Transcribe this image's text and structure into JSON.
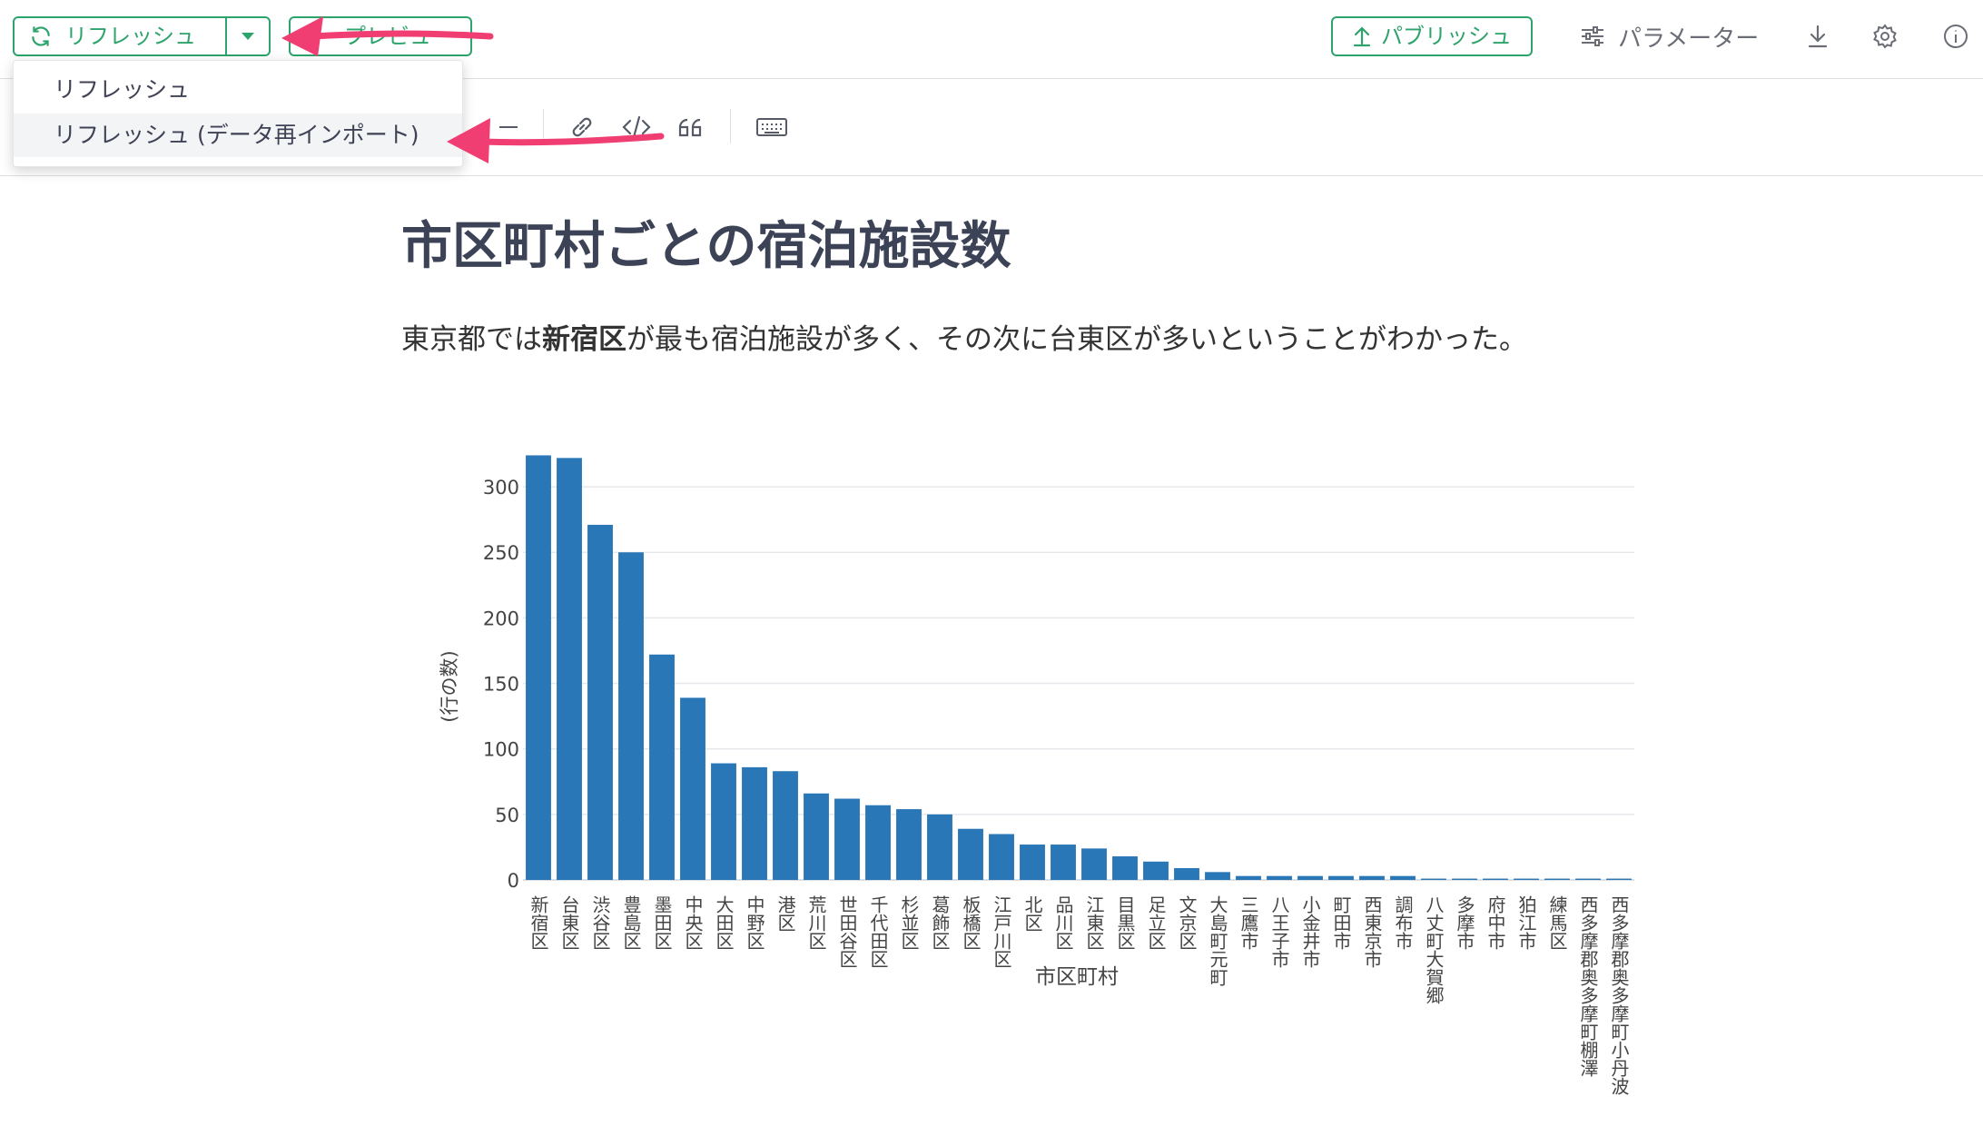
{
  "toolbar": {
    "refresh_label": "リフレッシュ",
    "preview_label": "プレビュー",
    "publish_label": "パブリッシュ",
    "parameters_label": "パラメーター",
    "icons": {
      "refresh": "refresh-icon",
      "caret": "caret-down-icon",
      "publish": "upload-icon",
      "parameters": "sliders-icon",
      "download": "download-icon",
      "settings": "gear-icon",
      "info": "info-icon"
    }
  },
  "editor_toolbar": {
    "icons": [
      "list-icon",
      "link-icon",
      "code-icon",
      "quote-icon",
      "keyboard-icon"
    ]
  },
  "dropdown": {
    "items": [
      "リフレッシュ",
      "リフレッシュ (データ再インポート)"
    ]
  },
  "document": {
    "title": "市区町村ごとの宿泊施設数",
    "text_before": "東京都では",
    "text_bold": "新宿区",
    "text_after": "が最も宿泊施設が多く、その次に台東区が多いということがわかった。"
  },
  "chart_data": {
    "type": "bar",
    "xlabel": "市区町村",
    "ylabel": "(行の数)",
    "ylim": [
      0,
      325
    ],
    "yticks": [
      0,
      50,
      100,
      150,
      200,
      250,
      300
    ],
    "grid": true,
    "bar_color": "#2a77b8",
    "categories": [
      "新宿区",
      "台東区",
      "渋谷区",
      "豊島区",
      "墨田区",
      "中央区",
      "大田区",
      "中野区",
      "港区",
      "荒川区",
      "世田谷区",
      "千代田区",
      "杉並区",
      "葛飾区",
      "板橋区",
      "江戸川区",
      "北区",
      "品川区",
      "江東区",
      "目黒区",
      "足立区",
      "文京区",
      "大島町元町",
      "三鷹市",
      "八王子市",
      "小金井市",
      "町田市",
      "西東京市",
      "調布市",
      "八丈町大賀郷",
      "多摩市",
      "府中市",
      "狛江市",
      "練馬区",
      "西多摩郡奥多摩町棚澤",
      "西多摩郡奥多摩町小丹波"
    ],
    "values": [
      324,
      322,
      271,
      250,
      172,
      139,
      89,
      86,
      83,
      66,
      62,
      57,
      54,
      50,
      39,
      35,
      27,
      27,
      24,
      18,
      14,
      9,
      6,
      3,
      3,
      3,
      3,
      3,
      3,
      1,
      1,
      1,
      1,
      1,
      1,
      1
    ]
  },
  "colors": {
    "accent_green": "#2ea36b",
    "annotation_pink": "#f03e72",
    "bar_blue": "#2a77b8"
  }
}
